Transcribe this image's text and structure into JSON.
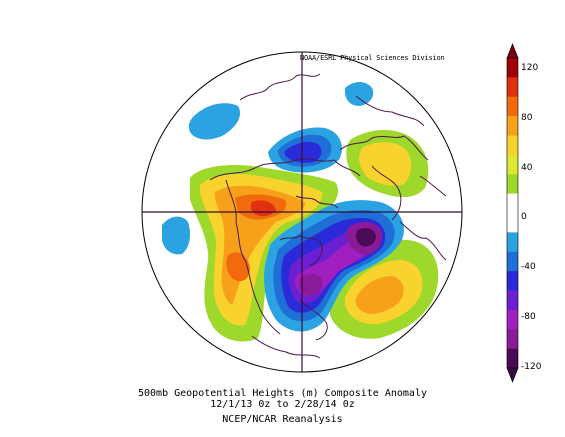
{
  "credit": "NOAA/ESRL Physical Sciences Division",
  "caption": {
    "line1": "500mb Geopotential Heights (m)   Composite Anomaly",
    "line2": "12/1/13 0z  to 2/28/14 0z",
    "line3": "NCEP/NCAR Reanalysis"
  },
  "colorbar": {
    "labels": [
      "120",
      "80",
      "40",
      "0",
      "-40",
      "-80",
      "-120"
    ],
    "colors": [
      "#a0000a",
      "#e03010",
      "#f26a0e",
      "#f7a01a",
      "#f8d32e",
      "#dde830",
      "#9ed82a",
      "#ffffff",
      "#ffffff",
      "#2ba3e2",
      "#1e6fd6",
      "#2a2ad8",
      "#6a1fd0",
      "#a01fc0",
      "#8a1a98",
      "#4a0a55"
    ]
  }
}
